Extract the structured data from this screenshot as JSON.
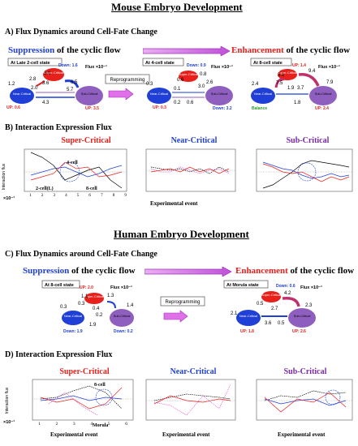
{
  "mouse": {
    "title": "Mouse Embryo Development",
    "sectionA": "A)  Flux Dynamics around Cell-Fate Change",
    "suppression_word": "Suppression",
    "suppression_rest": " of  the cyclic flow",
    "enhancement_word": "Enhancement",
    "enhancement_rest": " of  the cyclic flow",
    "reprogramming": "Reprogramming",
    "states": [
      {
        "label": "At Late 2-cell state",
        "down": "Down: 1.6",
        "up": "UP: 0.6",
        "up2": "UP: 3.5",
        "flux": "Flux ×10⁻¹",
        "nums": [
          "1.2",
          "2.8",
          "3.0",
          "2.0",
          "3.6",
          "5.7",
          "6.5",
          "4.3"
        ]
      },
      {
        "label": "At 4-cell state",
        "down": "Down: 0.9",
        "up": "UP: 0.3",
        "up2": "Down: 3.2",
        "flux": "Flux ×10⁻¹",
        "nums": [
          "0.3",
          "0.6",
          "0.8",
          "0.1",
          "0.2",
          "3.0",
          "2.6",
          "0.6"
        ]
      },
      {
        "label": "At 8-cell state",
        "down": "UP: 1.4",
        "up": "Balance",
        "up2": "UP: 2.4",
        "flux": "Flux ×10⁻¹",
        "nums": [
          "2.4",
          "3.1",
          "7.5",
          "9.4",
          "1.9",
          "3.7",
          "7.9",
          "1.8"
        ]
      }
    ],
    "sectionB": "B) Interaction Expression Flux",
    "panels": [
      "Super-Critical",
      "Near-Critical",
      "Sub-Critical"
    ],
    "xlabel": "Experimental event",
    "ylabel": "Interaction flux",
    "scale": "×10⁻¹",
    "annot": [
      "4-cell",
      "2-cell(L)",
      "8-cell"
    ],
    "xticks": [
      "1",
      "2",
      "3",
      "4",
      "5",
      "6",
      "7",
      "8",
      "9"
    ]
  },
  "human": {
    "title": "Human Embryo Development",
    "sectionC": "C)  Flux Dynamics around Cell-Fate Change",
    "suppression_word": "Suppression",
    "suppression_rest": " of  the cyclic flow",
    "enhancement_word": "Enhancement",
    "enhancement_rest": " of  the cyclic flow",
    "reprogramming": "Reprogramming",
    "states": [
      {
        "label": "At 8-cell state",
        "up": "UP: 2.0",
        "down": "Down: 1.9",
        "down2": "Down: 0.2",
        "flux": "Flux ×10⁻¹",
        "nums": [
          "0.3",
          "0.3",
          "1.1",
          "0.4",
          "1.3",
          "1.4",
          "0.2",
          "1.9"
        ]
      },
      {
        "label": "At Morula state",
        "down": "Down: 0.6",
        "up": "UP: 1.8",
        "up2": "UP: 2.6",
        "flux": "Flux ×10⁻¹",
        "nums": [
          "0.5",
          "2.7",
          "4.2",
          "2.3",
          "2.1",
          "3.6",
          "0.5"
        ]
      }
    ],
    "sectionD": "D) Interaction Expression Flux",
    "panels": [
      "Super-Critical",
      "Near-Critical",
      "Sub-Critical"
    ],
    "xlabel": "Experimental event",
    "ylabel": "Interaction flux",
    "scale": "×10⁻¹",
    "annot": [
      "8-cell",
      "Morula"
    ],
    "xticks": [
      "1",
      "2",
      "3",
      "4",
      "5",
      "6"
    ]
  },
  "nodes": {
    "super": "Super-Critical",
    "near": "Near-Critical",
    "sub": "Sub-Critical"
  },
  "colors": {
    "blue": "#1f3fd6",
    "red": "#e8201c",
    "purple": "#8f5fc0",
    "black": "#000000",
    "pink": "#e040c0"
  }
}
